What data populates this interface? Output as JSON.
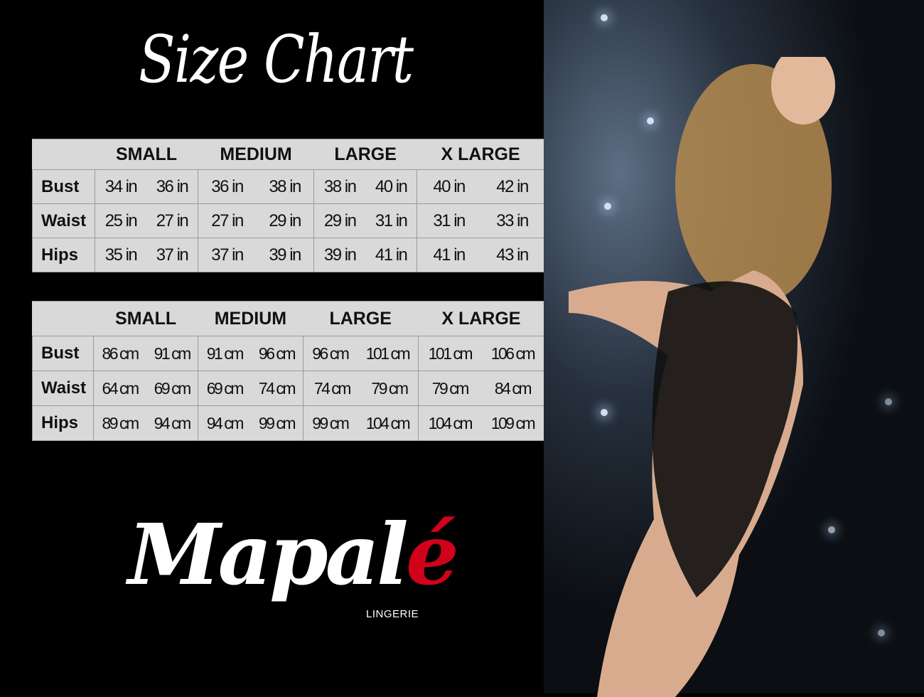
{
  "title": "Size Chart",
  "sizes": [
    "SMALL",
    "MEDIUM",
    "LARGE",
    "X LARGE"
  ],
  "inches": {
    "rows": [
      {
        "label": "Bust",
        "values": [
          [
            "34 in",
            "36 in"
          ],
          [
            "36 in",
            "38 in"
          ],
          [
            "38 in",
            "40 in"
          ],
          [
            "40 in",
            "42 in"
          ]
        ]
      },
      {
        "label": "Waist",
        "values": [
          [
            "25 in",
            "27 in"
          ],
          [
            "27 in",
            "29 in"
          ],
          [
            "29 in",
            "31 in"
          ],
          [
            "31 in",
            "33 in"
          ]
        ]
      },
      {
        "label": "Hips",
        "values": [
          [
            "35 in",
            "37 in"
          ],
          [
            "37 in",
            "39 in"
          ],
          [
            "39 in",
            "41 in"
          ],
          [
            "41 in",
            "43 in"
          ]
        ]
      }
    ]
  },
  "centimeters": {
    "rows": [
      {
        "label": "Bust",
        "values": [
          [
            "86 cm",
            "91 cm"
          ],
          [
            "91 cm",
            "96 cm"
          ],
          [
            "96 cm",
            "101 cm"
          ],
          [
            "101 cm",
            "106 cm"
          ]
        ]
      },
      {
        "label": "Waist",
        "values": [
          [
            "64 cm",
            "69 cm"
          ],
          [
            "69 cm",
            "74 cm"
          ],
          [
            "74 cm",
            "79 cm"
          ],
          [
            "79 cm",
            "84 cm"
          ]
        ]
      },
      {
        "label": "Hips",
        "values": [
          [
            "89 cm",
            "94 cm"
          ],
          [
            "94 cm",
            "99 cm"
          ],
          [
            "99 cm",
            "104 cm"
          ],
          [
            "104 cm",
            "109 cm"
          ]
        ]
      }
    ]
  },
  "logo": {
    "name": "Mapal",
    "accent": "é",
    "sub": "LINGERIE",
    "accent_color": "#d0021b"
  }
}
